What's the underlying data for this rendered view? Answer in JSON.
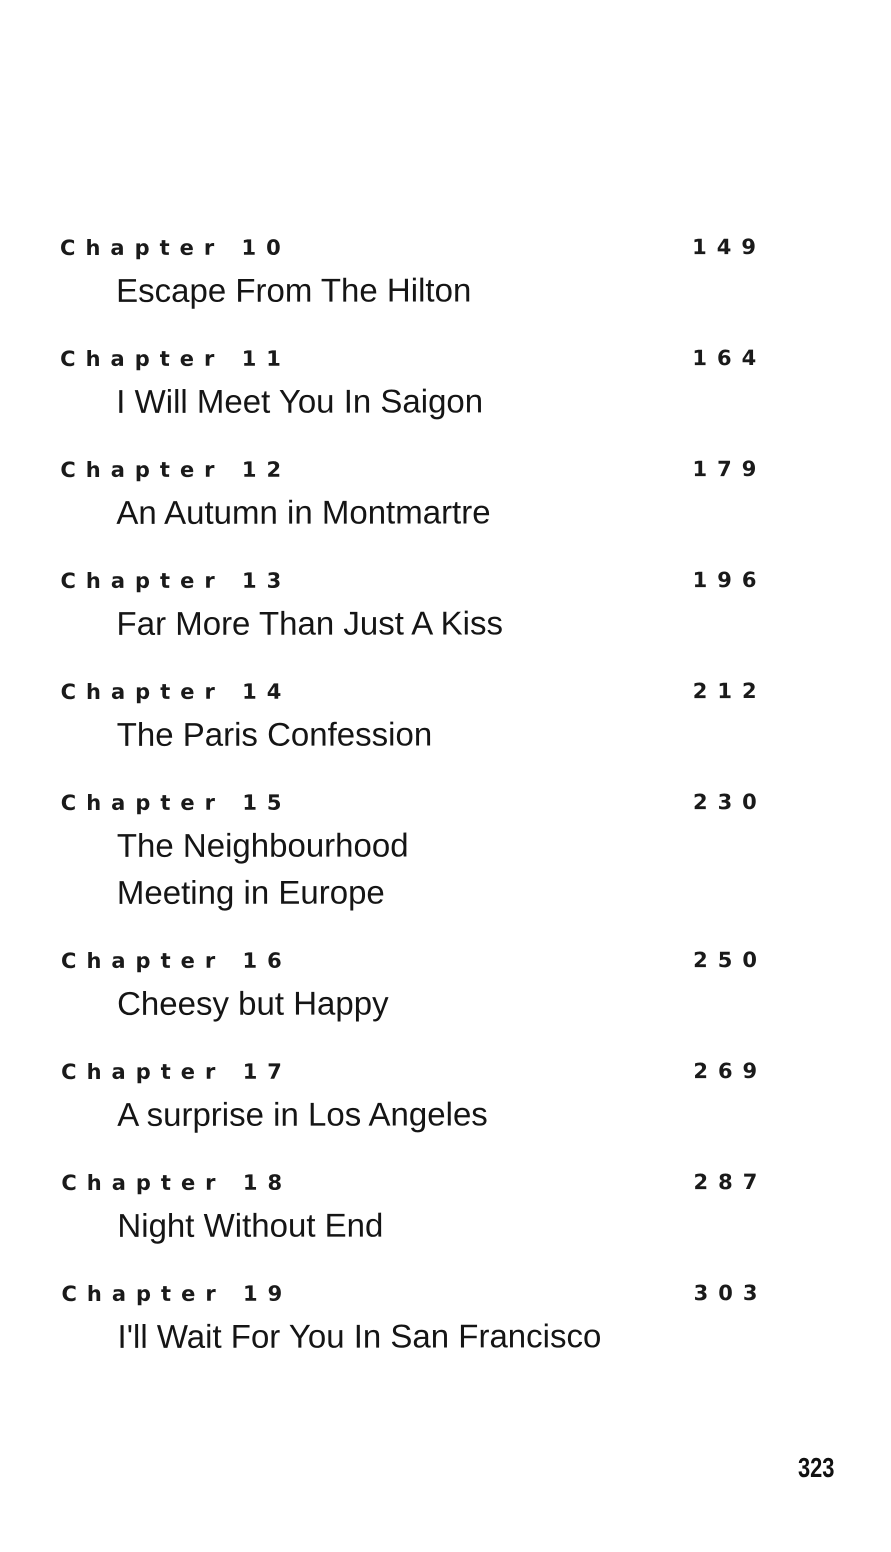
{
  "toc": [
    {
      "label": "Chapter 10",
      "page": "149",
      "title": [
        "Escape From The Hilton"
      ]
    },
    {
      "label": "Chapter 11",
      "page": "164",
      "title": [
        "I Will Meet You In Saigon"
      ]
    },
    {
      "label": "Chapter 12",
      "page": "179",
      "title": [
        "An Autumn in Montmartre"
      ]
    },
    {
      "label": "Chapter 13",
      "page": "196",
      "title": [
        "Far More Than Just A Kiss"
      ]
    },
    {
      "label": "Chapter 14",
      "page": "212",
      "title": [
        "The Paris Confession"
      ]
    },
    {
      "label": "Chapter 15",
      "page": "230",
      "title": [
        "The Neighbourhood",
        "Meeting in Europe"
      ]
    },
    {
      "label": "Chapter 16",
      "page": "250",
      "title": [
        "Cheesy but Happy"
      ]
    },
    {
      "label": "Chapter 17",
      "page": "269",
      "title": [
        "A surprise in Los Angeles"
      ]
    },
    {
      "label": "Chapter 18",
      "page": "287",
      "title": [
        "Night Without End"
      ]
    },
    {
      "label": "Chapter 19",
      "page": "303",
      "title": [
        "I'll Wait For You In San Francisco"
      ]
    }
  ],
  "folio": "323"
}
